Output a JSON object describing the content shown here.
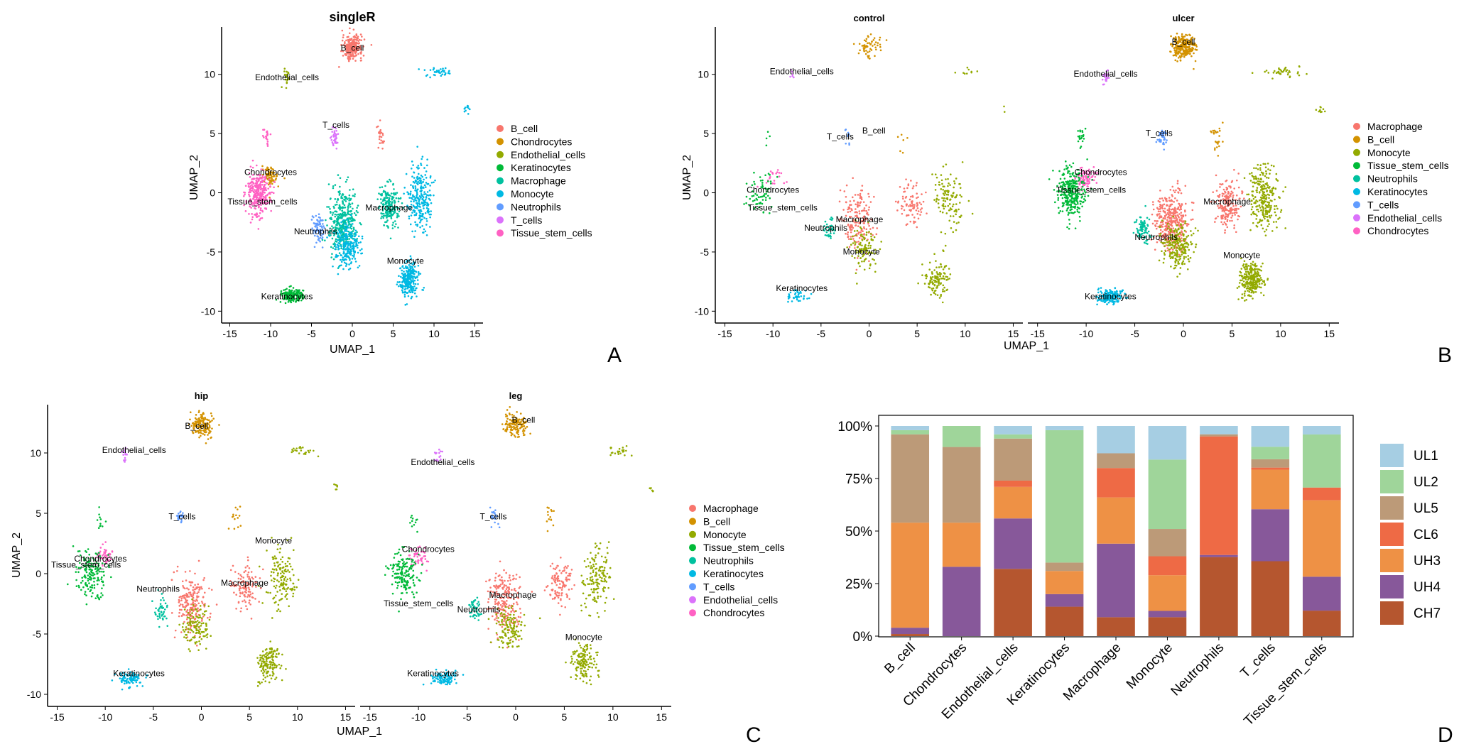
{
  "panel_letters": [
    "A",
    "B",
    "C",
    "D"
  ],
  "colors": {
    "B_cell": "#F8766D",
    "Chondrocytes": "#D39200",
    "Endothelial_cells": "#93AA00",
    "Keratinocytes": "#00BA38",
    "Macrophage": "#00C19F",
    "Monocyte": "#00B9E3",
    "Neutrophils": "#619CFF",
    "T_cells": "#DB72FB",
    "Tissue_stem_cells": "#FF61C3"
  },
  "colors_bc": {
    "Macrophage": "#F8766D",
    "B_cell": "#D39200",
    "Monocyte": "#93AA00",
    "Tissue_stem_cells": "#00BA38",
    "Neutrophils": "#00C19F",
    "Keratinocytes": "#00B9E3",
    "T_cells": "#619CFF",
    "Endothelial_cells": "#DB72FB",
    "Chondrocytes": "#FF61C3"
  },
  "stack_colors": {
    "UL1": "#A6CEE3",
    "UL2": "#9FD59A",
    "UL5": "#BC9A78",
    "CL6": "#EE6A45",
    "UH3": "#EE9145",
    "UH4": "#87589A",
    "CH7": "#B5562F"
  },
  "cell_types": [
    "B_cell",
    "Chondrocytes",
    "Endothelial_cells",
    "Keratinocytes",
    "Macrophage",
    "Monocyte",
    "Neutrophils",
    "T_cells",
    "Tissue_stem_cells"
  ],
  "legend_bc": [
    "Macrophage",
    "B_cell",
    "Monocyte",
    "Tissue_stem_cells",
    "Neutrophils",
    "Keratinocytes",
    "T_cells",
    "Endothelial_cells",
    "Chondrocytes"
  ],
  "umap": {
    "xlabel": "UMAP_1",
    "ylabel": "UMAP_2",
    "xlim": [
      -16,
      16
    ],
    "ylim": [
      -11,
      14
    ],
    "x_ticks": [
      -15,
      -10,
      -5,
      0,
      5,
      10,
      15
    ],
    "y_ticks": [
      -10,
      -5,
      0,
      5,
      10
    ]
  },
  "panels": [
    {
      "title": "singleR",
      "label_set": "A",
      "clusters": "all"
    },
    {
      "title": "control",
      "label_set": "control",
      "clusters": "sparse"
    },
    {
      "title": "ulcer",
      "label_set": "ulcer",
      "clusters": "all"
    },
    {
      "title": "hip",
      "label_set": "hip",
      "clusters": "hip"
    },
    {
      "title": "leg",
      "label_set": "leg",
      "clusters": "leg"
    }
  ],
  "cluster_labels": {
    "A": [
      [
        "B_cell",
        0,
        12
      ],
      [
        "Endothelial_cells",
        -8,
        9.5
      ],
      [
        "T_cells",
        -2,
        5.5
      ],
      [
        "Chondrocytes",
        -10,
        1.5
      ],
      [
        "Tissue_stem_cells",
        -11,
        -1
      ],
      [
        "Neutrophils",
        -4.5,
        -3.5
      ],
      [
        "Macrophage",
        4.5,
        -1.5
      ],
      [
        "Monocyte",
        6.5,
        -6
      ],
      [
        "Keratinocytes",
        -8,
        -9
      ]
    ],
    "control": [
      [
        "Endothelial_cells",
        -7,
        10
      ],
      [
        "T_cells",
        -3,
        4.5
      ],
      [
        "B_cell",
        0.5,
        5
      ],
      [
        "Chondrocytes",
        -10,
        0
      ],
      [
        "Tissue_stem_cells",
        -9,
        -1.5
      ],
      [
        "Macrophage",
        -1,
        -2.5
      ],
      [
        "Neutrophils",
        -4.5,
        -3.2
      ],
      [
        "Monocyte",
        -0.8,
        -5.2
      ],
      [
        "Keratinocytes",
        -7,
        -8.3
      ]
    ],
    "ulcer": [
      [
        "B_cell",
        0,
        12.5
      ],
      [
        "Endothelial_cells",
        -8,
        9.8
      ],
      [
        "T_cells",
        -2.5,
        4.8
      ],
      [
        "Chondrocytes",
        -8.5,
        1.5
      ],
      [
        "Tissue_stem_cells",
        -9.5,
        0
      ],
      [
        "Macrophage",
        4.5,
        -1
      ],
      [
        "Neutrophils",
        -2.8,
        -4
      ],
      [
        "Monocyte",
        6,
        -5.5
      ],
      [
        "Keratinocytes",
        -7.5,
        -9
      ]
    ],
    "hip": [
      [
        "B_cell",
        -0.5,
        12
      ],
      [
        "Endothelial_cells",
        -7,
        10
      ],
      [
        "T_cells",
        -2,
        4.5
      ],
      [
        "Chondrocytes",
        -10.5,
        1
      ],
      [
        "Tissue_stem_cells",
        -12,
        0.5
      ],
      [
        "Neutrophils",
        -4.5,
        -1.5
      ],
      [
        "Monocyte",
        7.5,
        2.5
      ],
      [
        "Macrophage",
        4.5,
        -1
      ],
      [
        "Keratinocytes",
        -6.5,
        -8.5
      ]
    ],
    "leg": [
      [
        "B_cell",
        0.8,
        12.5
      ],
      [
        "Endothelial_cells",
        -7.5,
        9
      ],
      [
        "T_cells",
        -2.3,
        4.5
      ],
      [
        "Chondrocytes",
        -9,
        1.8
      ],
      [
        "Tissue_stem_cells",
        -10,
        -2.7
      ],
      [
        "Macrophage",
        -0.3,
        -2
      ],
      [
        "Neutrophils",
        -3.8,
        -3.2
      ],
      [
        "Monocyte",
        7,
        -5.5
      ],
      [
        "Keratinocytes",
        -8.5,
        -8.5
      ]
    ]
  },
  "chart_data": {
    "type": "bar",
    "stacked": true,
    "categories": [
      "B_cell",
      "Chondrocytes",
      "Endothelial_cells",
      "Keratinocytes",
      "Macrophage",
      "Monocyte",
      "Neutrophils",
      "T_cells",
      "Tissue_stem_cells"
    ],
    "series": [
      {
        "name": "UL1",
        "values": [
          2,
          0,
          4,
          2,
          13,
          16,
          4,
          10,
          4
        ]
      },
      {
        "name": "UL2",
        "values": [
          2,
          10,
          2,
          63,
          0,
          33,
          0,
          6,
          25
        ]
      },
      {
        "name": "UL5",
        "values": [
          42,
          36,
          20,
          4,
          7,
          13,
          1,
          4,
          0
        ]
      },
      {
        "name": "CL6",
        "values": [
          0,
          0,
          3,
          0,
          14,
          9,
          57,
          1,
          6
        ]
      },
      {
        "name": "UH3",
        "values": [
          50,
          21,
          15,
          11,
          22,
          17,
          0,
          19,
          36
        ]
      },
      {
        "name": "UH4",
        "values": [
          3,
          33,
          24,
          6,
          35,
          3,
          1,
          25,
          16
        ]
      },
      {
        "name": "CH7",
        "values": [
          1,
          0,
          32,
          14,
          9,
          9,
          38,
          36,
          12
        ]
      }
    ],
    "y_ticks": [
      "0%",
      "25%",
      "50%",
      "75%",
      "100%"
    ],
    "ylim": [
      0,
      100
    ],
    "legend": [
      "UL1",
      "UL2",
      "UL5",
      "CL6",
      "UH3",
      "UH4",
      "CH7"
    ]
  }
}
